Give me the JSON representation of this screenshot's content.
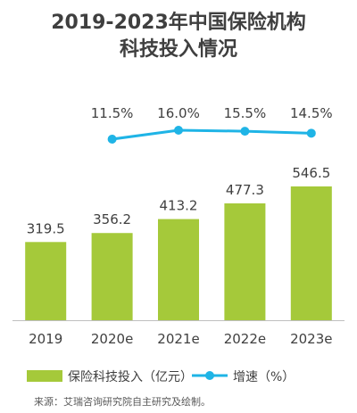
{
  "title_line1": "2019-2023年中国保险机构",
  "title_line2": "科技投入情况",
  "source": "来源：艾瑞咨询研究院自主研究及绘制。",
  "colors": {
    "bar": "#a5c93a",
    "line": "#1fb4e6",
    "axis": "#bfbfbf"
  },
  "chart_data": {
    "type": "bar",
    "categories": [
      "2019",
      "2020e",
      "2021e",
      "2022e",
      "2023e"
    ],
    "series": [
      {
        "name": "保险科技投入（亿元）",
        "type": "bar",
        "values": [
          319.5,
          356.2,
          413.2,
          477.3,
          546.5
        ],
        "labels": [
          "319.5",
          "356.2",
          "413.2",
          "477.3",
          "546.5"
        ]
      },
      {
        "name": "增速（%）",
        "type": "line",
        "values": [
          null,
          11.5,
          16.0,
          15.5,
          14.5
        ],
        "labels": [
          "",
          "11.5%",
          "16.0%",
          "15.5%",
          "14.5%"
        ]
      }
    ],
    "legend_position": "bottom",
    "grid": false
  }
}
